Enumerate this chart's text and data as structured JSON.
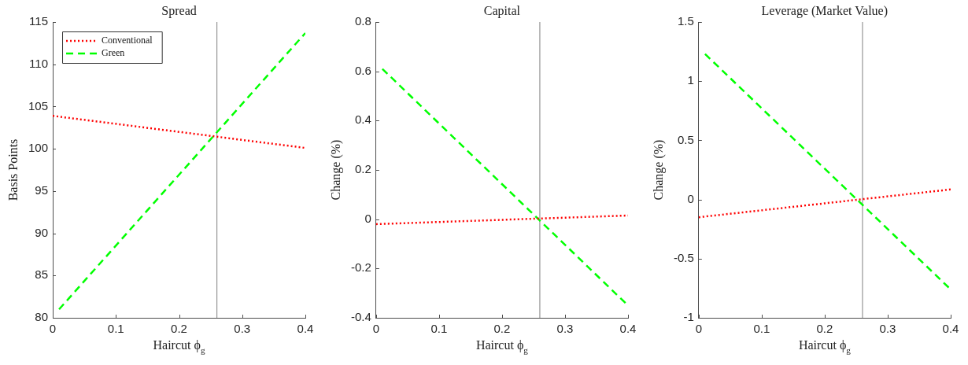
{
  "chart_data": [
    {
      "type": "line",
      "title": "Spread",
      "xlabel": "Haircut ϕ$_{g}$",
      "ylabel": "Basis Points",
      "series": [
        {
          "name": "Conventional",
          "color": "#ff0000",
          "line_style": "dotted",
          "x": [
            0,
            0.4
          ],
          "values": [
            103.9,
            100.1
          ]
        },
        {
          "name": "Green",
          "color": "#00ff00",
          "line_style": "dashed",
          "x": [
            0.01,
            0.4
          ],
          "values": [
            81,
            113.7
          ]
        }
      ],
      "xlim": [
        0,
        0.4
      ],
      "xticks": [
        0,
        0.1,
        0.2,
        0.3,
        0.4
      ],
      "ylim": [
        80,
        115
      ],
      "yticks": [
        80,
        85,
        90,
        95,
        100,
        105,
        110,
        115
      ],
      "ref_lines": [
        {
          "axis": "x",
          "value": 0.26,
          "color": "#808080"
        }
      ],
      "legend": "top left",
      "grid": false,
      "marker": "none"
    },
    {
      "type": "line",
      "title": "Capital",
      "xlabel": "Haircut ϕ$_{g}$",
      "ylabel": "Change (%)",
      "series": [
        {
          "color": "#ff0000",
          "line_style": "dotted",
          "x": [
            0,
            0.4
          ],
          "values": [
            -0.02,
            0.015
          ]
        },
        {
          "color": "#00ff00",
          "line_style": "dashed",
          "x": [
            0.01,
            0.4
          ],
          "values": [
            0.61,
            -0.35
          ]
        }
      ],
      "xlim": [
        0,
        0.4
      ],
      "xticks": [
        0,
        0.1,
        0.2,
        0.3,
        0.4
      ],
      "ylim": [
        -0.4,
        0.8
      ],
      "yticks": [
        -0.4,
        -0.2,
        0,
        0.2,
        0.4,
        0.6,
        0.8
      ],
      "ref_lines": [
        {
          "axis": "x",
          "value": 0.26,
          "color": "#808080"
        }
      ],
      "legend": false,
      "grid": false,
      "marker": "none"
    },
    {
      "type": "line",
      "title": "Leverage (Market Value)",
      "xlabel": "Haircut ϕ$_{g}$",
      "ylabel": "Change (%)",
      "series": [
        {
          "color": "#ff0000",
          "line_style": "dotted",
          "x": [
            0,
            0.4
          ],
          "values": [
            -0.15,
            0.085
          ]
        },
        {
          "color": "#00ff00",
          "line_style": "dashed",
          "x": [
            0.01,
            0.4
          ],
          "values": [
            1.23,
            -0.76
          ]
        }
      ],
      "xlim": [
        0,
        0.4
      ],
      "xticks": [
        0,
        0.1,
        0.2,
        0.3,
        0.4
      ],
      "ylim": [
        -1,
        1.5
      ],
      "yticks": [
        -1,
        -0.5,
        0,
        0.5,
        1,
        1.5
      ],
      "ref_lines": [
        {
          "axis": "x",
          "value": 0.26,
          "color": "#808080"
        }
      ],
      "legend": false,
      "grid": false,
      "marker": "none"
    }
  ]
}
